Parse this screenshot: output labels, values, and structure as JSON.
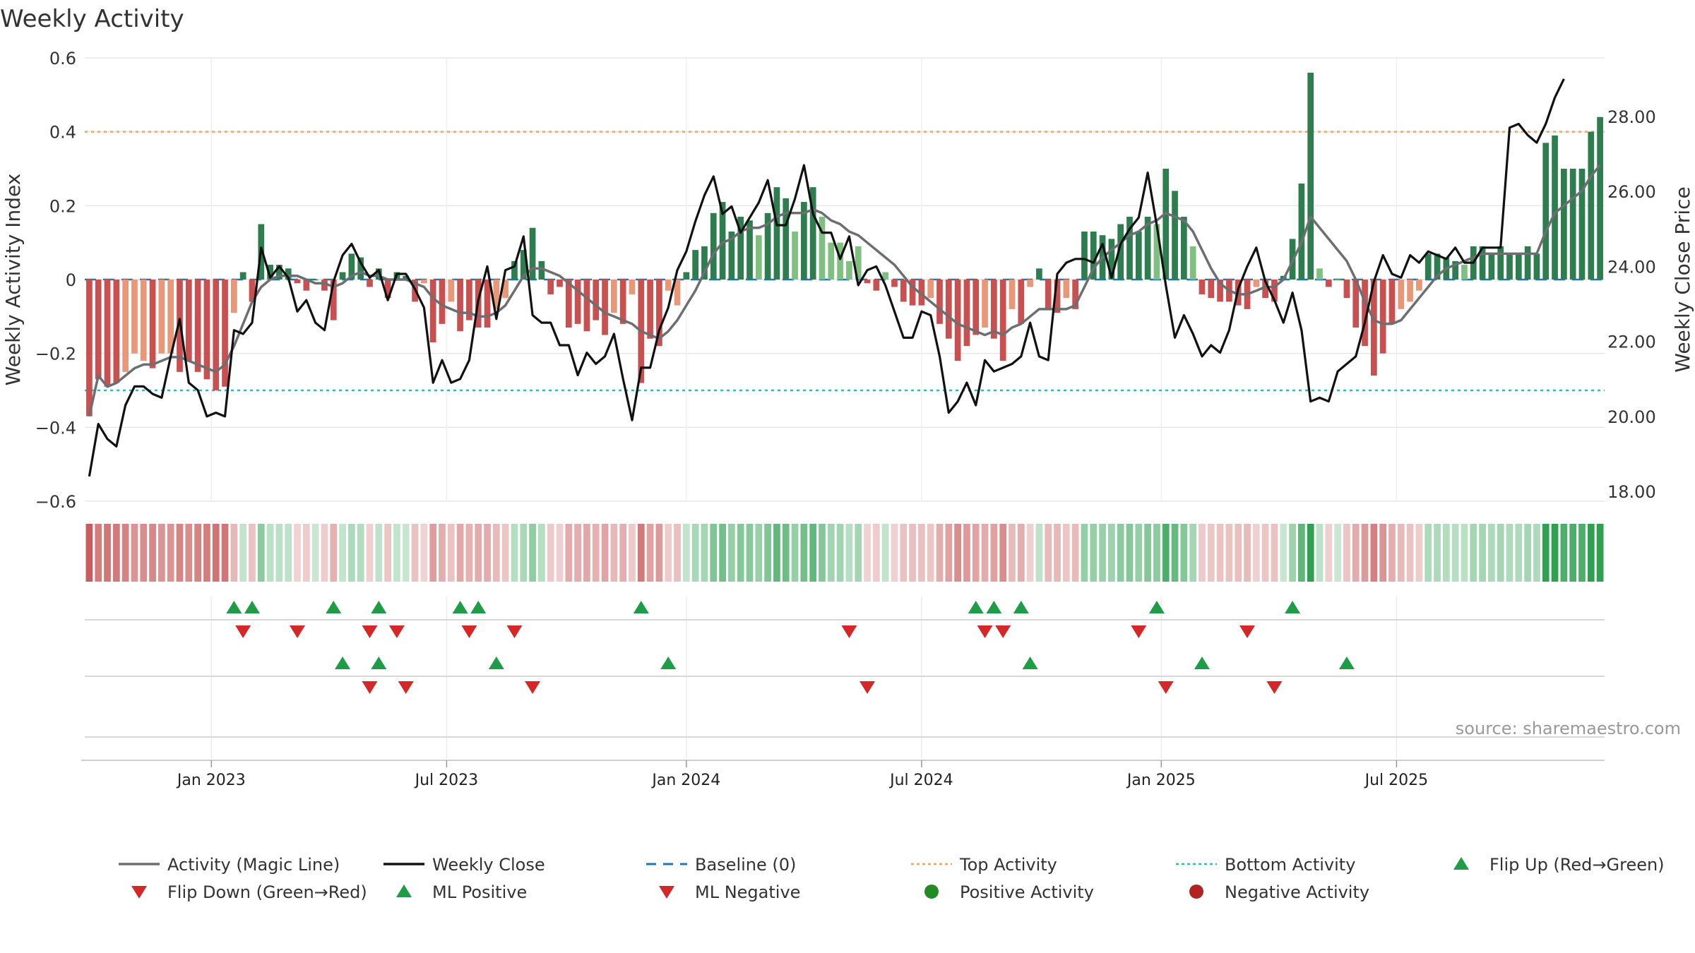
{
  "chart_data": {
    "type": "bar",
    "title": "Weekly Activity",
    "ylabel_left": "Weekly Activity Index",
    "ylabel_right": "Weekly Close Price",
    "source": "source: sharemaestro.com",
    "left_axis": {
      "ylim": [
        -0.6,
        0.6
      ],
      "ticks": [
        {
          "v": 0.6,
          "label": "0.6"
        },
        {
          "v": 0.4,
          "label": "0.4"
        },
        {
          "v": 0.2,
          "label": "0.2"
        },
        {
          "v": 0,
          "label": "0"
        },
        {
          "v": -0.2,
          "label": "−0.2"
        },
        {
          "v": -0.4,
          "label": "−0.4"
        },
        {
          "v": -0.6,
          "label": "−0.6"
        }
      ]
    },
    "right_axis": {
      "ylim": [
        17.74,
        29.56
      ],
      "ticks": [
        {
          "v": 28,
          "label": "28.00"
        },
        {
          "v": 26,
          "label": "26.00"
        },
        {
          "v": 24,
          "label": "24.00"
        },
        {
          "v": 22,
          "label": "22.00"
        },
        {
          "v": 20,
          "label": "20.00"
        },
        {
          "v": 18,
          "label": "18.00"
        }
      ]
    },
    "x_start_week_index": 0,
    "x_ticks": [
      {
        "week": 14,
        "label": "Jan 2023"
      },
      {
        "week": 40,
        "label": "Jul 2023"
      },
      {
        "week": 66.5,
        "label": "Jan 2024"
      },
      {
        "week": 92.5,
        "label": "Jul 2024"
      },
      {
        "week": 119,
        "label": "Jan 2025"
      },
      {
        "week": 145,
        "label": "Jul 2025"
      }
    ],
    "levels": {
      "top": 0.4,
      "bottom": -0.3,
      "baseline": 0
    },
    "activity": [
      -0.37,
      -0.27,
      -0.29,
      -0.28,
      -0.25,
      -0.2,
      -0.22,
      -0.24,
      -0.2,
      -0.2,
      -0.25,
      -0.22,
      -0.25,
      -0.27,
      -0.3,
      -0.29,
      -0.09,
      0.02,
      -0.06,
      0.15,
      0.04,
      0.04,
      0.03,
      -0.01,
      -0.03,
      0,
      -0.03,
      -0.11,
      0.02,
      0.07,
      0.06,
      -0.02,
      0.03,
      -0.05,
      0.02,
      0.01,
      -0.06,
      -0.01,
      -0.17,
      -0.12,
      -0.06,
      -0.14,
      -0.11,
      -0.13,
      -0.13,
      -0.08,
      -0.05,
      0.05,
      0.08,
      0.14,
      0.05,
      -0.04,
      -0.02,
      -0.13,
      -0.12,
      -0.14,
      -0.11,
      -0.15,
      -0.09,
      -0.12,
      -0.04,
      -0.28,
      -0.16,
      -0.18,
      -0.03,
      -0.07,
      0.02,
      0.08,
      0.09,
      0.18,
      0.21,
      0.13,
      0.17,
      0.16,
      0.12,
      0.18,
      0.25,
      0.22,
      0.13,
      0.21,
      0.25,
      0.17,
      0.1,
      0.1,
      0.05,
      0.09,
      -0.01,
      -0.03,
      0.02,
      -0.02,
      -0.06,
      -0.07,
      -0.07,
      -0.05,
      -0.12,
      -0.16,
      -0.22,
      -0.18,
      -0.15,
      -0.13,
      -0.16,
      -0.22,
      -0.08,
      -0.12,
      -0.02,
      0.03,
      -0.08,
      -0.09,
      -0.05,
      -0.08,
      0.13,
      0.13,
      0.12,
      0.11,
      0.15,
      0.17,
      0.13,
      0.17,
      0.15,
      0.3,
      0.24,
      0.17,
      0.09,
      -0.04,
      -0.05,
      -0.06,
      -0.06,
      -0.07,
      -0.08,
      -0.02,
      -0.05,
      -0.06,
      0.01,
      0.11,
      0.26,
      0.56,
      0.03,
      -0.02,
      0,
      -0.05,
      -0.13,
      -0.18,
      -0.26,
      -0.2,
      -0.12,
      -0.08,
      -0.06,
      -0.03,
      0.07,
      0.07,
      0.06,
      0.05,
      0.04,
      0.09,
      0.09,
      0.07,
      0.09,
      0.07,
      0.07,
      0.09,
      0.07,
      0.37,
      0.39,
      0.3,
      0.3,
      0.3,
      0.4,
      0.44
    ],
    "magic_line": [
      -0.37,
      -0.26,
      -0.29,
      -0.28,
      -0.26,
      -0.24,
      -0.23,
      -0.23,
      -0.22,
      -0.21,
      -0.21,
      -0.22,
      -0.23,
      -0.24,
      -0.25,
      -0.23,
      -0.18,
      -0.12,
      -0.06,
      -0.02,
      0,
      0.01,
      0.01,
      0.01,
      0,
      -0.01,
      -0.01,
      -0.02,
      -0.01,
      0.01,
      0.02,
      0.01,
      0.01,
      0,
      0,
      0,
      -0.01,
      -0.02,
      -0.05,
      -0.07,
      -0.08,
      -0.09,
      -0.09,
      -0.1,
      -0.1,
      -0.09,
      -0.07,
      -0.03,
      0.01,
      0.03,
      0.03,
      0.02,
      0.01,
      -0.01,
      -0.03,
      -0.05,
      -0.07,
      -0.09,
      -0.1,
      -0.11,
      -0.12,
      -0.14,
      -0.15,
      -0.16,
      -0.14,
      -0.11,
      -0.07,
      -0.03,
      0.02,
      0.07,
      0.1,
      0.11,
      0.13,
      0.14,
      0.14,
      0.15,
      0.17,
      0.18,
      0.18,
      0.18,
      0.19,
      0.18,
      0.16,
      0.15,
      0.13,
      0.12,
      0.1,
      0.08,
      0.06,
      0.04,
      0.01,
      -0.02,
      -0.04,
      -0.06,
      -0.08,
      -0.1,
      -0.12,
      -0.13,
      -0.14,
      -0.15,
      -0.14,
      -0.15,
      -0.13,
      -0.12,
      -0.1,
      -0.08,
      -0.08,
      -0.08,
      -0.08,
      -0.07,
      -0.02,
      0.03,
      0.06,
      0.08,
      0.1,
      0.12,
      0.13,
      0.15,
      0.16,
      0.18,
      0.17,
      0.16,
      0.13,
      0.08,
      0.03,
      -0.01,
      -0.03,
      -0.04,
      -0.04,
      -0.03,
      -0.02,
      -0.02,
      0,
      0.05,
      0.1,
      0.17,
      0.14,
      0.11,
      0.08,
      0.05,
      0,
      -0.06,
      -0.11,
      -0.12,
      -0.12,
      -0.11,
      -0.08,
      -0.05,
      -0.02,
      0.01,
      0.03,
      0.04,
      0.05,
      0.06,
      0.07,
      0.07,
      0.07,
      0.07,
      0.07,
      0.07,
      0.07,
      0.13,
      0.18,
      0.2,
      0.22,
      0.24,
      0.28,
      0.31
    ],
    "weekly_close": [
      18.4,
      19.8,
      19.4,
      19.2,
      20.3,
      20.8,
      20.8,
      20.6,
      20.5,
      21.6,
      22.6,
      20.9,
      20.7,
      20.0,
      20.1,
      20.0,
      22.3,
      22.2,
      22.5,
      24.5,
      23.7,
      24.0,
      23.7,
      22.8,
      23.1,
      22.5,
      22.3,
      23.6,
      24.3,
      24.6,
      24.1,
      23.7,
      23.9,
      23.1,
      23.8,
      23.8,
      23.4,
      22.9,
      20.9,
      21.5,
      20.9,
      21.0,
      21.5,
      23.1,
      24.0,
      22.6,
      23.9,
      24.0,
      24.8,
      22.7,
      22.5,
      22.5,
      21.9,
      21.9,
      21.1,
      21.7,
      21.4,
      21.6,
      22.2,
      21.0,
      19.9,
      21.3,
      21.3,
      22.3,
      22.9,
      23.9,
      24.4,
      25.2,
      25.9,
      26.4,
      25.4,
      25.6,
      24.9,
      25.3,
      25.7,
      26.3,
      25.1,
      25.1,
      25.8,
      26.7,
      25.4,
      24.9,
      24.9,
      24.2,
      24.8,
      23.5,
      23.9,
      24.0,
      23.5,
      22.8,
      22.1,
      22.1,
      22.8,
      22.7,
      21.6,
      20.1,
      20.4,
      20.9,
      20.3,
      21.5,
      21.2,
      21.3,
      21.4,
      21.6,
      22.5,
      21.6,
      21.5,
      23.8,
      24.1,
      24.2,
      24.2,
      24.1,
      24.6,
      23.7,
      24.6,
      25.0,
      25.3,
      26.5,
      25.1,
      23.5,
      22.1,
      22.7,
      22.2,
      21.6,
      21.9,
      21.7,
      22.3,
      23.4,
      24.0,
      24.5,
      23.6,
      23.1,
      22.5,
      23.3,
      22.3,
      20.4,
      20.5,
      20.4,
      21.2,
      21.4,
      21.6,
      22.5,
      23.6,
      24.3,
      23.8,
      23.7,
      24.3,
      24.1,
      24.4,
      24.3,
      24.2,
      24.5,
      24.1,
      24.1,
      24.5,
      24.5,
      24.5,
      27.7,
      27.8,
      27.5,
      27.3,
      27.8,
      28.5,
      29.0
    ],
    "heat_strip": "per-week colour strip of the activity sign and strength",
    "markers": {
      "flip_up_weeks": [
        16,
        18,
        27,
        32,
        41,
        43,
        61,
        98,
        100,
        103,
        118,
        133
      ],
      "flip_down_weeks": [
        17,
        23,
        31,
        34,
        42,
        47,
        84,
        99,
        101,
        116,
        128
      ],
      "ml_positive_weeks": [
        28,
        32,
        45,
        64,
        104,
        123,
        139
      ],
      "ml_negative_weeks": [
        31,
        35,
        49,
        86,
        119,
        131
      ],
      "positive_activity_weeks": [],
      "negative_activity_weeks": []
    },
    "legend": [
      {
        "key": "magic",
        "label": "Activity (Magic Line)",
        "symbol": "line",
        "color": "#6d6e72"
      },
      {
        "key": "close",
        "label": "Weekly Close",
        "symbol": "line",
        "color": "#111111"
      },
      {
        "key": "baseline",
        "label": "Baseline (0)",
        "symbol": "dash",
        "color": "#1f77b4"
      },
      {
        "key": "top",
        "label": "Top Activity",
        "symbol": "dot",
        "color": "#f4a460"
      },
      {
        "key": "bottom",
        "label": "Bottom Activity",
        "symbol": "dot",
        "color": "#20c0c0"
      },
      {
        "key": "flipup",
        "label": "Flip Up (Red→Green)",
        "symbol": "tri-up",
        "color": "#1e9c46"
      },
      {
        "key": "flipdown",
        "label": "Flip Down (Green→Red)",
        "symbol": "tri-down",
        "color": "#d62728"
      },
      {
        "key": "mlpos",
        "label": "ML Positive",
        "symbol": "tri-up",
        "color": "#1e9c46"
      },
      {
        "key": "mlneg",
        "label": "ML Negative",
        "symbol": "tri-down",
        "color": "#d62728"
      },
      {
        "key": "posact",
        "label": "Positive Activity",
        "symbol": "circle",
        "color": "#228b22"
      },
      {
        "key": "negact",
        "label": "Negative Activity",
        "symbol": "circle",
        "color": "#b22222"
      }
    ],
    "colors": {
      "pos_strong": "#2e7d4f",
      "pos_light": "#7fbf7f",
      "neg_strong": "#c95050",
      "neg_light": "#e89878",
      "grid": "#e6e6e6",
      "baseline": "#1f77b4",
      "top": "#f4a460",
      "bottom": "#20c0c0"
    }
  }
}
